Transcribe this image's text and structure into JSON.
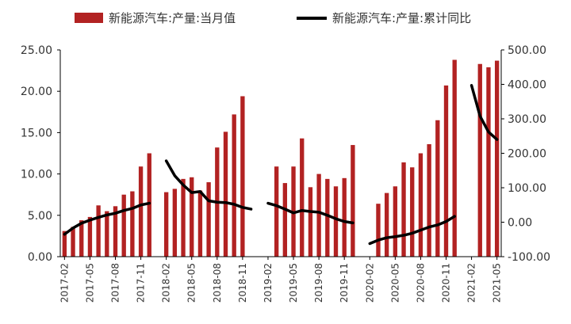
{
  "chart_data": {
    "type": "bar+line",
    "legend": {
      "bar_label": "新能源汽车:产量:当月值",
      "line_label": "新能源汽车:产量:累计同比",
      "placement": "top"
    },
    "colors": {
      "bar": "#B22222",
      "line": "#000000",
      "axis": "#000000"
    },
    "left_axis": {
      "ylim": [
        0,
        25
      ],
      "ticks": [
        "0.00",
        "5.00",
        "10.00",
        "15.00",
        "20.00",
        "25.00"
      ]
    },
    "right_axis": {
      "ylim": [
        -100,
        500
      ],
      "ticks": [
        "-100.00",
        "0.00",
        "100.00",
        "200.00",
        "300.00",
        "400.00",
        "500.00"
      ]
    },
    "x_tick_labels": [
      "2017-02",
      "2017-05",
      "2017-08",
      "2017-11",
      "2018-02",
      "2018-05",
      "2018-08",
      "2018-11",
      "2019-02",
      "2019-05",
      "2019-08",
      "2019-11",
      "2020-02",
      "2020-05",
      "2020-08",
      "2020-11",
      "2021-02",
      "2021-05"
    ],
    "categories": [
      "2017-02",
      "2017-03",
      "2017-04",
      "2017-05",
      "2017-06",
      "2017-07",
      "2017-08",
      "2017-09",
      "2017-10",
      "2017-11",
      "2017-12",
      "2018-01",
      "2018-02",
      "2018-03",
      "2018-04",
      "2018-05",
      "2018-06",
      "2018-07",
      "2018-08",
      "2018-09",
      "2018-10",
      "2018-11",
      "2018-12",
      "2019-01",
      "2019-02",
      "2019-03",
      "2019-04",
      "2019-05",
      "2019-06",
      "2019-07",
      "2019-08",
      "2019-09",
      "2019-10",
      "2019-11",
      "2019-12",
      "2020-01",
      "2020-02",
      "2020-03",
      "2020-04",
      "2020-05",
      "2020-06",
      "2020-07",
      "2020-08",
      "2020-09",
      "2020-10",
      "2020-11",
      "2020-12",
      "2021-01",
      "2021-02",
      "2021-03",
      "2021-04",
      "2021-05"
    ],
    "series": [
      {
        "name": "新能源汽车:产量:当月值",
        "type": "bar",
        "axis": "left",
        "values": [
          3.1,
          3.6,
          4.4,
          4.8,
          6.2,
          5.5,
          6.1,
          7.5,
          7.9,
          10.9,
          12.5,
          null,
          7.8,
          8.2,
          9.4,
          9.6,
          8.0,
          9.0,
          13.2,
          15.1,
          17.2,
          19.4,
          null,
          null,
          null,
          10.9,
          8.9,
          10.9,
          14.3,
          8.4,
          10.0,
          9.4,
          8.5,
          9.5,
          13.5,
          null,
          null,
          6.4,
          7.7,
          8.5,
          11.4,
          10.8,
          12.5,
          13.6,
          16.5,
          20.7,
          23.8,
          null,
          null,
          23.3,
          22.9,
          23.7
        ]
      },
      {
        "name": "新能源汽车:产量:累计同比",
        "type": "line",
        "axis": "right",
        "values": [
          -35,
          -17,
          -3,
          6,
          14,
          21,
          26,
          34,
          40,
          50,
          55,
          null,
          178,
          135,
          108,
          86,
          89,
          62,
          58,
          57,
          52,
          43,
          38,
          null,
          55,
          48,
          38,
          27,
          34,
          31,
          29,
          20,
          10,
          2,
          -2,
          null,
          -62,
          -52,
          -45,
          -42,
          -38,
          -32,
          -23,
          -14,
          -8,
          2,
          17,
          null,
          397,
          308,
          262,
          240
        ]
      }
    ]
  }
}
